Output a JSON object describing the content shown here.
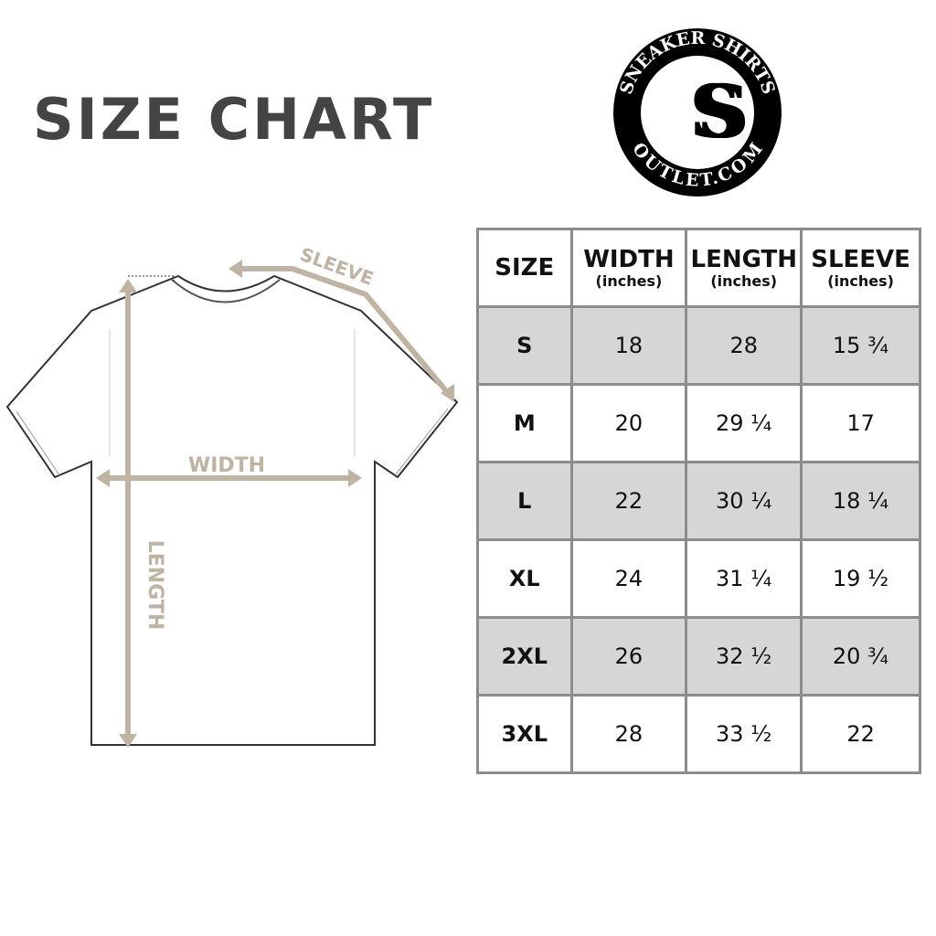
{
  "title": "SIZE CHART",
  "logo": {
    "top_text": "SNEAKER SHIRTS",
    "bottom_text": "OUTLET.COM",
    "monogram": "SS"
  },
  "diagram": {
    "labels": {
      "width": "WIDTH",
      "length": "LENGTH",
      "sleeve": "SLEEVE"
    },
    "arrow_color": "#bfb3a2"
  },
  "table": {
    "headers": [
      {
        "label": "SIZE",
        "unit": ""
      },
      {
        "label": "WIDTH",
        "unit": "(inches)"
      },
      {
        "label": "LENGTH",
        "unit": "(inches)"
      },
      {
        "label": "SLEEVE",
        "unit": "(inches)"
      }
    ],
    "rows": [
      [
        "S",
        "18",
        "28",
        "15 ¾"
      ],
      [
        "M",
        "20",
        "29 ¼",
        "17"
      ],
      [
        "L",
        "22",
        "30 ¼",
        "18 ¼"
      ],
      [
        "XL",
        "24",
        "31 ¼",
        "19 ½"
      ],
      [
        "2XL",
        "26",
        "32 ½",
        "20 ¾"
      ],
      [
        "3XL",
        "28",
        "33 ½",
        "22"
      ]
    ],
    "shade_color": "#d6d6d6",
    "border_color": "#8c8c8c"
  }
}
